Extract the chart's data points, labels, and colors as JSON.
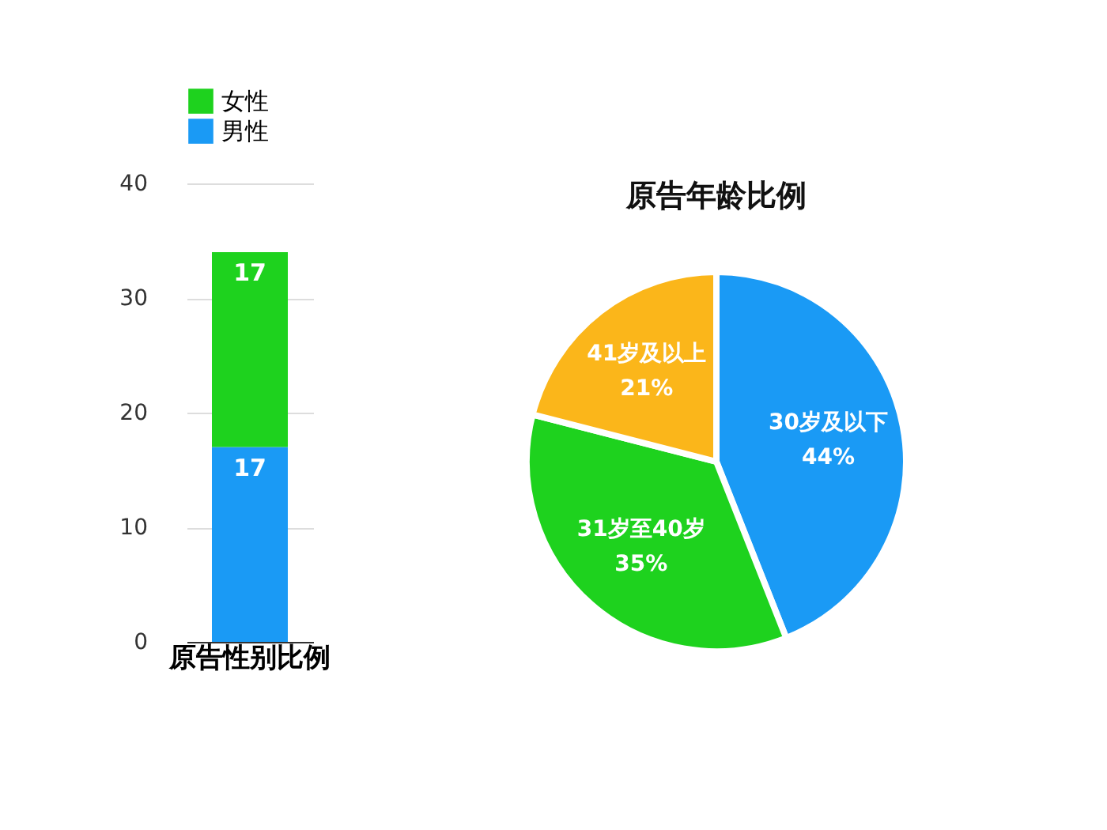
{
  "chart_data": [
    {
      "type": "bar",
      "stacked": true,
      "categories": [
        "原告性别比例"
      ],
      "series": [
        {
          "name": "男性",
          "color": "#1a9af5",
          "values": [
            17
          ]
        },
        {
          "name": "女性",
          "color": "#1ed21e",
          "values": [
            17
          ]
        }
      ],
      "ylim": [
        0,
        40
      ],
      "yticks": [
        0,
        10,
        20,
        30,
        40
      ],
      "grid": "y",
      "legend": "top",
      "data_labels": true
    },
    {
      "type": "pie",
      "title": "原告年龄比例",
      "categories": [
        "30岁及以下",
        "31岁至40岁",
        "41岁及以上"
      ],
      "values": [
        44,
        35,
        21
      ],
      "colors": [
        "#1a9af5",
        "#1ed21e",
        "#fbb61a"
      ],
      "value_labels": [
        "44%",
        "35%",
        "21%"
      ]
    }
  ]
}
